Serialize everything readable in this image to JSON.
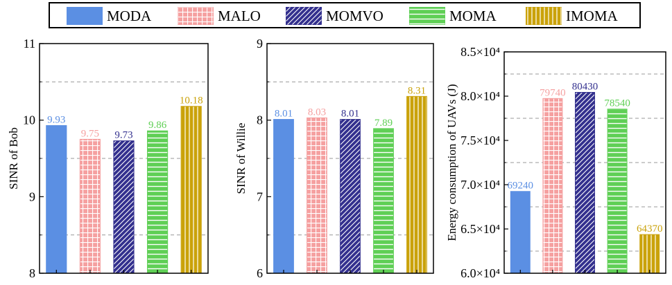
{
  "colors": {
    "MODA": "#5b8fe3",
    "MALO": "#f5a0a0",
    "MOMVO": "#33308e",
    "MOMA": "#5fcf55",
    "IMOMA": "#caa20a"
  },
  "legend": [
    "MODA",
    "MALO",
    "MOMVO",
    "MOMA",
    "IMOMA"
  ],
  "chart_data": [
    {
      "type": "bar",
      "categories": [
        "MODA",
        "MALO",
        "MOMVO",
        "MOMA",
        "IMOMA"
      ],
      "values": [
        9.93,
        9.75,
        9.73,
        9.86,
        10.18
      ],
      "value_labels": [
        "9.93",
        "9.75",
        "9.73",
        "9.86",
        "10.18"
      ],
      "ylabel": "SINR of Bob",
      "ylim": [
        8,
        11
      ],
      "yticks": [
        "8",
        "9",
        "10",
        "11"
      ],
      "tick_values": [
        8,
        9,
        10,
        11
      ],
      "grid": [
        8.5,
        9.5,
        10.5
      ]
    },
    {
      "type": "bar",
      "categories": [
        "MODA",
        "MALO",
        "MOMVO",
        "MOMA",
        "IMOMA"
      ],
      "values": [
        8.01,
        8.03,
        8.01,
        7.89,
        8.31
      ],
      "value_labels": [
        "8.01",
        "8.03",
        "8.01",
        "7.89",
        "8.31"
      ],
      "ylabel": "SINR of Willie",
      "ylim": [
        6,
        9
      ],
      "yticks": [
        "6",
        "7",
        "8",
        "9"
      ],
      "tick_values": [
        6,
        7,
        8,
        9
      ],
      "grid": [
        6.5,
        7.5,
        8.5
      ]
    },
    {
      "type": "bar",
      "categories": [
        "MODA",
        "MALO",
        "MOMVO",
        "MOMA",
        "IMOMA"
      ],
      "values": [
        69240,
        79740,
        80430,
        78540,
        64370
      ],
      "value_labels": [
        "69240",
        "79740",
        "80430",
        "78540",
        "64370"
      ],
      "ylabel": "Energy consumption of UAVs (J)",
      "ylim": [
        60000,
        85000
      ],
      "yticks": [
        "6.0×10⁴",
        "6.5×10⁴",
        "7.0×10⁴",
        "7.5×10⁴",
        "8.0×10⁴",
        "8.5×10⁴"
      ],
      "tick_values": [
        60000,
        65000,
        70000,
        75000,
        80000,
        85000
      ],
      "grid": [
        62500,
        67500,
        72500,
        77500,
        82500
      ]
    }
  ]
}
